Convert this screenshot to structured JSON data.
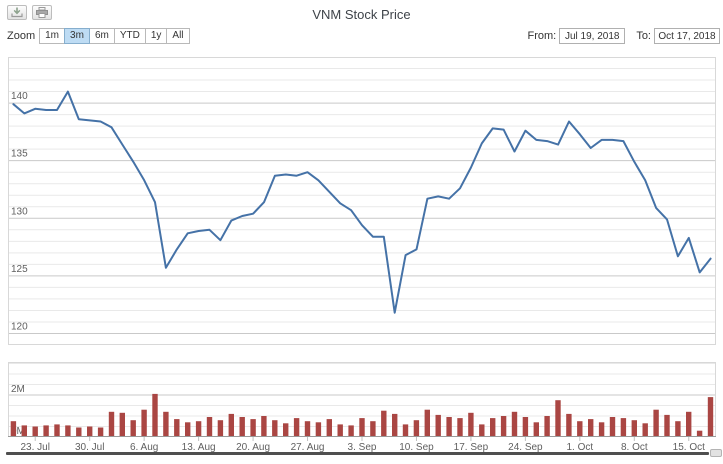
{
  "title": "VNM Stock Price",
  "toolbar": {
    "export_icon": "download-icon",
    "print_icon": "print-icon"
  },
  "zoom": {
    "label": "Zoom",
    "buttons": [
      "1m",
      "3m",
      "6m",
      "YTD",
      "1y",
      "All"
    ],
    "selected": "3m"
  },
  "range": {
    "from_label": "From:",
    "from_value": "Jul 19, 2018",
    "to_label": "To:",
    "to_value": "Oct 17, 2018"
  },
  "colors": {
    "line": "#4572A7",
    "volume_bar": "#AA4643",
    "major_grid": "#C9C9C9",
    "minor_grid": "#E9E9E9",
    "plot_border": "#D8D8D8",
    "axis_line": "#9A9A9A",
    "tick": "#C0C0C0",
    "axis_label": "#606060",
    "selected_zoom_bg": "#BEDCF4",
    "scrollbar": "#4F4F4F"
  },
  "chart_data": [
    {
      "type": "line",
      "name": "VNM price",
      "title": "VNM Stock Price",
      "xlabel": "",
      "ylabel": "",
      "ylim": [
        119,
        144
      ],
      "yticks": [
        120,
        125,
        130,
        135,
        140
      ],
      "grid": true,
      "legend": "none",
      "x": [
        "Jul 19",
        "Jul 20",
        "Jul 23",
        "Jul 24",
        "Jul 25",
        "Jul 26",
        "Jul 27",
        "Jul 30",
        "Jul 31",
        "Aug 1",
        "Aug 2",
        "Aug 3",
        "Aug 6",
        "Aug 7",
        "Aug 8",
        "Aug 9",
        "Aug 10",
        "Aug 13",
        "Aug 14",
        "Aug 15",
        "Aug 16",
        "Aug 17",
        "Aug 20",
        "Aug 21",
        "Aug 22",
        "Aug 23",
        "Aug 24",
        "Aug 27",
        "Aug 28",
        "Aug 29",
        "Aug 30",
        "Aug 31",
        "Sep 3",
        "Sep 4",
        "Sep 5",
        "Sep 6",
        "Sep 7",
        "Sep 10",
        "Sep 11",
        "Sep 12",
        "Sep 13",
        "Sep 14",
        "Sep 17",
        "Sep 18",
        "Sep 19",
        "Sep 20",
        "Sep 21",
        "Sep 24",
        "Sep 25",
        "Sep 26",
        "Sep 27",
        "Sep 28",
        "Oct 1",
        "Oct 2",
        "Oct 3",
        "Oct 4",
        "Oct 5",
        "Oct 8",
        "Oct 9",
        "Oct 10",
        "Oct 11",
        "Oct 12",
        "Oct 15",
        "Oct 16",
        "Oct 17"
      ],
      "values": [
        139.9,
        139.1,
        139.5,
        139.4,
        139.4,
        141.0,
        138.6,
        138.5,
        138.4,
        137.9,
        136.4,
        134.9,
        133.3,
        131.4,
        125.7,
        127.3,
        128.7,
        128.9,
        129.0,
        128.1,
        129.8,
        130.2,
        130.4,
        131.4,
        133.7,
        133.8,
        133.7,
        134.0,
        133.3,
        132.3,
        131.3,
        130.7,
        129.4,
        128.4,
        128.4,
        121.8,
        126.8,
        127.3,
        131.7,
        131.9,
        131.7,
        132.6,
        134.4,
        136.5,
        137.8,
        137.7,
        135.8,
        137.6,
        136.8,
        136.7,
        136.4,
        138.4,
        137.3,
        136.1,
        136.8,
        136.8,
        136.7,
        134.9,
        133.3,
        130.9,
        129.9,
        126.7,
        128.3,
        125.3,
        126.5
      ],
      "xtick_labels": [
        "23. Jul",
        "30. Jul",
        "6. Aug",
        "13. Aug",
        "20. Aug",
        "27. Aug",
        "3. Sep",
        "10. Sep",
        "17. Sep",
        "24. Sep",
        "1. Oct",
        "8. Oct",
        "15. Oct"
      ],
      "xtick_index": [
        2,
        7,
        12,
        17,
        22,
        27,
        32,
        37,
        42,
        47,
        52,
        57,
        62
      ]
    },
    {
      "type": "bar",
      "name": "Volume",
      "unit": "M shares",
      "ylim": [
        0,
        3.57
      ],
      "yticks": [
        0,
        2
      ],
      "ytick_labels": [
        "0M",
        "2M"
      ],
      "grid": true,
      "values": [
        0.75,
        0.55,
        0.5,
        0.55,
        0.6,
        0.55,
        0.45,
        0.5,
        0.45,
        1.2,
        1.15,
        0.8,
        1.3,
        2.05,
        1.2,
        0.85,
        0.7,
        0.75,
        0.95,
        0.8,
        1.1,
        0.95,
        0.85,
        1.0,
        0.8,
        0.65,
        0.9,
        0.75,
        0.7,
        0.85,
        0.6,
        0.55,
        0.9,
        0.75,
        1.25,
        1.1,
        0.6,
        0.8,
        1.3,
        1.05,
        0.95,
        0.9,
        1.15,
        0.6,
        0.9,
        1.0,
        1.2,
        0.95,
        0.7,
        1.0,
        1.75,
        1.1,
        0.75,
        0.85,
        0.7,
        0.95,
        0.9,
        0.8,
        0.65,
        1.3,
        1.05,
        0.75,
        1.2,
        0.3,
        1.9
      ]
    }
  ]
}
